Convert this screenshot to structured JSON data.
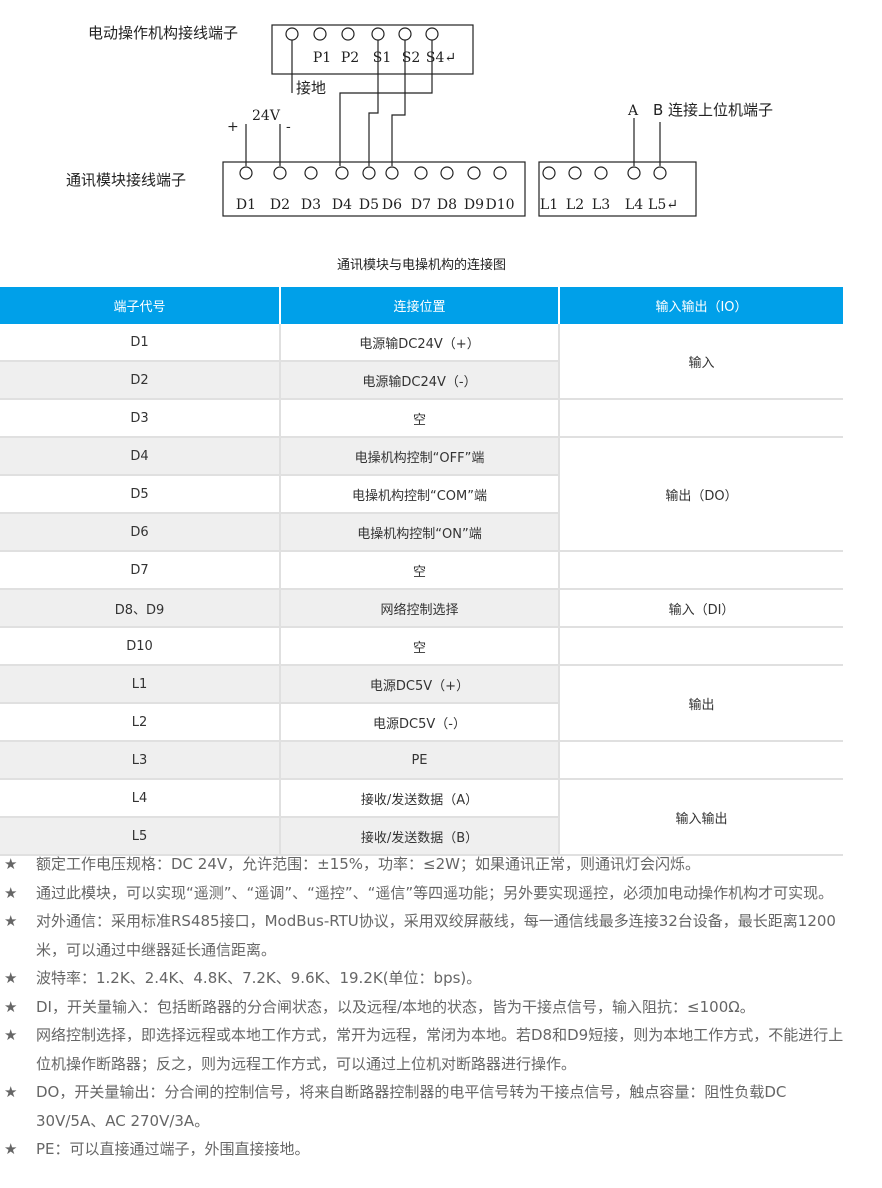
{
  "diagram": {
    "top_title": "电动操作机构接线端子",
    "top_labels": [
      "P1",
      "P2",
      "S1",
      "S2",
      "S4↵"
    ],
    "ground": "接地",
    "plus": "+",
    "voltage": "24V",
    "minus": "-",
    "bottom_title": "通讯模块接线端子",
    "d_labels": [
      "D1",
      "D2",
      "D3",
      "D4",
      "D5",
      "D6",
      "D7",
      "D8",
      "D9",
      "D10"
    ],
    "l_labels": [
      "L1",
      "L2",
      "L3",
      "L4",
      "L5↵"
    ],
    "a_label": "A",
    "b_label": "B 连接上位机端子"
  },
  "caption": "通讯模块与电操机构的连接图",
  "table": {
    "headers": [
      "端子代号",
      "连接位置",
      "输入输出（IO）"
    ],
    "rows": [
      [
        "D1",
        "电源输DC24V（+）"
      ],
      [
        "D2",
        "电源输DC24V（-）"
      ],
      [
        "D3",
        "空"
      ],
      [
        "D4",
        "电操机构控制“OFF”端"
      ],
      [
        "D5",
        "电操机构控制“COM”端"
      ],
      [
        "D6",
        "电操机构控制“ON”端"
      ],
      [
        "D7",
        "空"
      ],
      [
        "D8、D9",
        "网络控制选择"
      ],
      [
        "D10",
        "空"
      ],
      [
        "L1",
        "电源DC5V（+）"
      ],
      [
        "L2",
        "电源DC5V（-）"
      ],
      [
        "L3",
        "PE"
      ],
      [
        "L4",
        "接收/发送数据（A）"
      ],
      [
        "L5",
        "接收/发送数据（B）"
      ]
    ],
    "io": [
      "输入",
      "",
      "输出（DO）",
      "",
      "输入（DI）",
      "",
      "输出",
      "",
      "输入输出"
    ]
  },
  "notes": [
    "额定工作电压规格：DC 24V，允许范围：±15%，功率：≤2W；如果通讯正常，则通讯灯会闪烁。",
    "通过此模块，可以实现“遥测”、“遥调”、“遥控”、“遥信”等四遥功能；另外要实现遥控，必须加电动操作机构才可实现。",
    "对外通信：采用标准RS485接口，ModBus-RTU协议，采用双绞屏蔽线，每一通信线最多连接32台设备，最长距离1200米，可以通过中继器延长通信距离。",
    "波特率：1.2K、2.4K、4.8K、7.2K、9.6K、19.2K(单位：bps)。",
    "DI，开关量输入：包括断路器的分合闸状态，以及远程/本地的状态，皆为干接点信号，输入阻抗：≤100Ω。",
    "网络控制选择，即选择远程或本地工作方式，常开为远程，常闭为本地。若D8和D9短接，则为本地工作方式，不能进行上位机操作断路器；反之，则为远程工作方式，可以通过上位机对断路器进行操作。",
    "DO，开关量输出：分合闸的控制信号，将来自断路器控制器的电平信号转为干接点信号，触点容量：阻性负载DC 30V/5A、AC 270V/3A。",
    "PE：可以直接通过端子，外围直接接地。"
  ],
  "bullet": "★",
  "colors": {
    "header": "#00a0e9",
    "alt_row": "#efefef"
  }
}
